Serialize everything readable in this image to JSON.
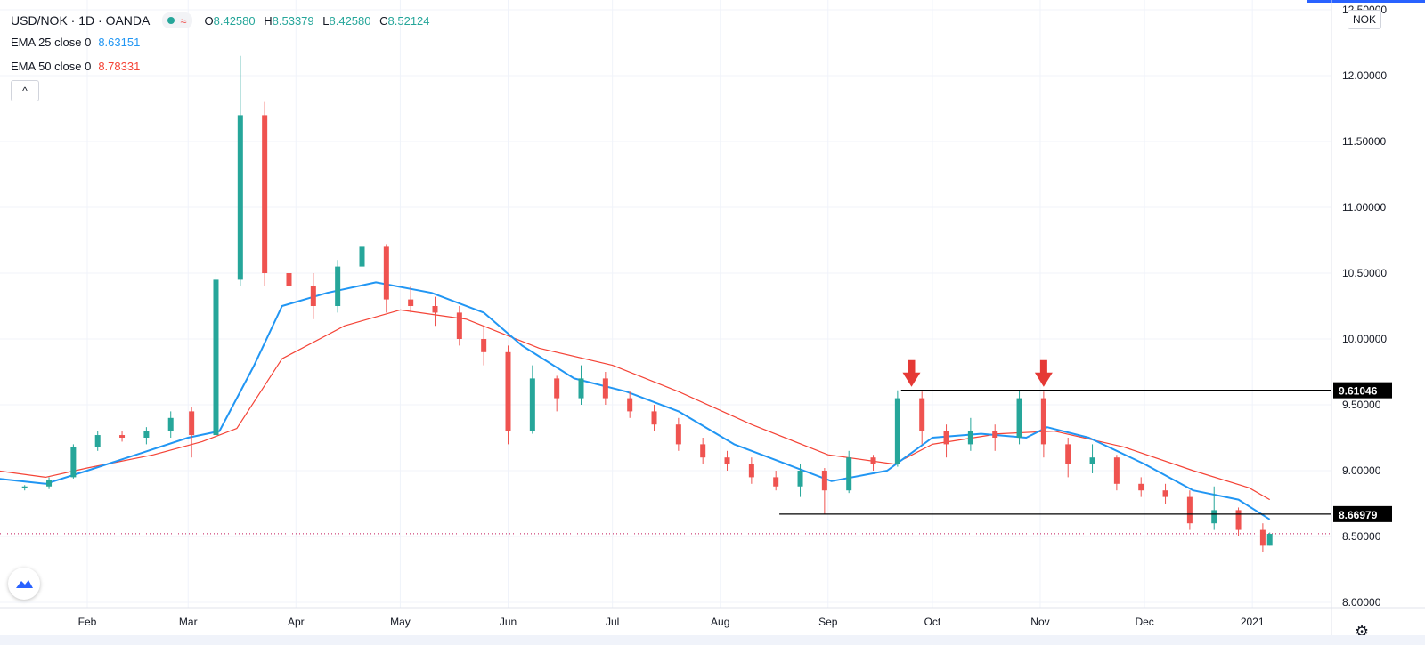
{
  "header": {
    "symbol": "USD/NOK · 1D · OANDA",
    "wave_glyph": "≈",
    "ohlc": {
      "o_key": "O",
      "o": "8.42580",
      "h_key": "H",
      "h": "8.53379",
      "l_key": "L",
      "l": "8.42580",
      "c_key": "C",
      "c": "8.52124"
    }
  },
  "indicators": [
    {
      "label": "EMA 25 close 0",
      "value": "8.63151",
      "color": "#2196f3"
    },
    {
      "label": "EMA 50 close 0",
      "value": "8.78331",
      "color": "#f44336"
    }
  ],
  "collapse_glyph": "^",
  "currency_tag": "NOK",
  "settings_glyph": "⚙",
  "colors": {
    "up": "#26a69a",
    "down": "#ef5350",
    "ema25": "#2196f3",
    "ema50": "#f44336",
    "grid": "#f0f3fa",
    "arrow": "#e53935",
    "level_line": "#000000"
  },
  "chart_data": {
    "type": "candlestick",
    "x_tick_labels": [
      "Feb",
      "Mar",
      "Apr",
      "May",
      "Jun",
      "Jul",
      "Aug",
      "Sep",
      "Oct",
      "Nov",
      "Dec",
      "2021"
    ],
    "y_ticks": [
      8.0,
      8.5,
      9.0,
      9.5,
      10.0,
      10.5,
      11.0,
      11.5,
      12.0,
      12.5
    ],
    "y_tick_labels": [
      "8.00000",
      "8.50000",
      "9.00000",
      "9.50000",
      "10.00000",
      "10.50000",
      "11.00000",
      "11.50000",
      "12.00000",
      "12.50000"
    ],
    "ylim": [
      8.0,
      12.5
    ],
    "horizontal_levels": [
      {
        "label": "9.61046",
        "value": 9.61046,
        "from": "2020-09-22"
      },
      {
        "label": "8.66979",
        "value": 8.66979,
        "from": "2020-08-18"
      }
    ],
    "last_price": 8.52124,
    "arrows": [
      {
        "date": "2020-09-25",
        "value": 9.61
      },
      {
        "date": "2020-11-02",
        "value": 9.61
      }
    ],
    "candles": [
      [
        "2020-01-14",
        8.87,
        8.89,
        8.85,
        8.88
      ],
      [
        "2020-01-21",
        8.88,
        8.95,
        8.86,
        8.93
      ],
      [
        "2020-01-28",
        8.95,
        9.2,
        8.94,
        9.18
      ],
      [
        "2020-02-04",
        9.18,
        9.3,
        9.15,
        9.27
      ],
      [
        "2020-02-11",
        9.27,
        9.3,
        9.22,
        9.25
      ],
      [
        "2020-02-18",
        9.25,
        9.33,
        9.2,
        9.3
      ],
      [
        "2020-02-25",
        9.3,
        9.45,
        9.25,
        9.4
      ],
      [
        "2020-03-02",
        9.45,
        9.48,
        9.1,
        9.27
      ],
      [
        "2020-03-09",
        9.27,
        10.5,
        9.25,
        10.45
      ],
      [
        "2020-03-16",
        10.45,
        12.15,
        10.4,
        11.7
      ],
      [
        "2020-03-23",
        11.7,
        11.8,
        10.4,
        10.5
      ],
      [
        "2020-03-30",
        10.5,
        10.75,
        10.25,
        10.4
      ],
      [
        "2020-04-06",
        10.4,
        10.5,
        10.15,
        10.25
      ],
      [
        "2020-04-13",
        10.25,
        10.6,
        10.2,
        10.55
      ],
      [
        "2020-04-20",
        10.55,
        10.8,
        10.45,
        10.7
      ],
      [
        "2020-04-27",
        10.7,
        10.72,
        10.2,
        10.3
      ],
      [
        "2020-05-04",
        10.3,
        10.4,
        10.2,
        10.25
      ],
      [
        "2020-05-11",
        10.25,
        10.32,
        10.1,
        10.2
      ],
      [
        "2020-05-18",
        10.2,
        10.25,
        9.95,
        10.0
      ],
      [
        "2020-05-25",
        10.0,
        10.1,
        9.8,
        9.9
      ],
      [
        "2020-06-01",
        9.9,
        9.95,
        9.2,
        9.3
      ],
      [
        "2020-06-08",
        9.3,
        9.8,
        9.28,
        9.7
      ],
      [
        "2020-06-15",
        9.7,
        9.72,
        9.45,
        9.55
      ],
      [
        "2020-06-22",
        9.55,
        9.8,
        9.5,
        9.7
      ],
      [
        "2020-06-29",
        9.7,
        9.75,
        9.5,
        9.55
      ],
      [
        "2020-07-06",
        9.55,
        9.6,
        9.4,
        9.45
      ],
      [
        "2020-07-13",
        9.45,
        9.5,
        9.3,
        9.35
      ],
      [
        "2020-07-20",
        9.35,
        9.4,
        9.15,
        9.2
      ],
      [
        "2020-07-27",
        9.2,
        9.25,
        9.05,
        9.1
      ],
      [
        "2020-08-03",
        9.1,
        9.15,
        9.0,
        9.05
      ],
      [
        "2020-08-10",
        9.05,
        9.1,
        8.9,
        8.95
      ],
      [
        "2020-08-17",
        8.95,
        9.0,
        8.85,
        8.88
      ],
      [
        "2020-08-24",
        8.88,
        9.05,
        8.8,
        9.0
      ],
      [
        "2020-08-31",
        9.0,
        9.02,
        8.67,
        8.85
      ],
      [
        "2020-09-07",
        8.85,
        9.15,
        8.83,
        9.1
      ],
      [
        "2020-09-14",
        9.1,
        9.12,
        9.0,
        9.05
      ],
      [
        "2020-09-21",
        9.05,
        9.61,
        9.03,
        9.55
      ],
      [
        "2020-09-28",
        9.55,
        9.6,
        9.2,
        9.3
      ],
      [
        "2020-10-05",
        9.3,
        9.35,
        9.1,
        9.2
      ],
      [
        "2020-10-12",
        9.2,
        9.4,
        9.15,
        9.3
      ],
      [
        "2020-10-19",
        9.3,
        9.35,
        9.15,
        9.25
      ],
      [
        "2020-10-26",
        9.25,
        9.61,
        9.2,
        9.55
      ],
      [
        "2020-11-02",
        9.55,
        9.6,
        9.1,
        9.2
      ],
      [
        "2020-11-09",
        9.2,
        9.25,
        8.95,
        9.05
      ],
      [
        "2020-11-16",
        9.05,
        9.2,
        8.98,
        9.1
      ],
      [
        "2020-11-23",
        9.1,
        9.12,
        8.85,
        8.9
      ],
      [
        "2020-11-30",
        8.9,
        8.95,
        8.8,
        8.85
      ],
      [
        "2020-12-07",
        8.85,
        8.9,
        8.75,
        8.8
      ],
      [
        "2020-12-14",
        8.8,
        8.85,
        8.55,
        8.6
      ],
      [
        "2020-12-21",
        8.6,
        8.88,
        8.55,
        8.7
      ],
      [
        "2020-12-28",
        8.7,
        8.72,
        8.5,
        8.55
      ],
      [
        "2021-01-04",
        8.55,
        8.6,
        8.38,
        8.43
      ],
      [
        "2021-01-06",
        8.43,
        8.53,
        8.43,
        8.52
      ]
    ],
    "ema25": [
      [
        "2020-01-06",
        8.94
      ],
      [
        "2020-01-20",
        8.9
      ],
      [
        "2020-02-01",
        9.0
      ],
      [
        "2020-02-15",
        9.12
      ],
      [
        "2020-03-01",
        9.25
      ],
      [
        "2020-03-10",
        9.3
      ],
      [
        "2020-03-20",
        9.8
      ],
      [
        "2020-03-28",
        10.25
      ],
      [
        "2020-04-10",
        10.35
      ],
      [
        "2020-04-24",
        10.43
      ],
      [
        "2020-05-10",
        10.35
      ],
      [
        "2020-05-25",
        10.2
      ],
      [
        "2020-06-05",
        9.95
      ],
      [
        "2020-06-20",
        9.7
      ],
      [
        "2020-07-05",
        9.6
      ],
      [
        "2020-07-20",
        9.45
      ],
      [
        "2020-08-05",
        9.2
      ],
      [
        "2020-08-20",
        9.05
      ],
      [
        "2020-09-02",
        8.92
      ],
      [
        "2020-09-18",
        9.0
      ],
      [
        "2020-10-01",
        9.25
      ],
      [
        "2020-10-15",
        9.28
      ],
      [
        "2020-10-28",
        9.25
      ],
      [
        "2020-11-03",
        9.33
      ],
      [
        "2020-11-15",
        9.25
      ],
      [
        "2020-12-01",
        9.05
      ],
      [
        "2020-12-15",
        8.85
      ],
      [
        "2020-12-28",
        8.78
      ],
      [
        "2021-01-06",
        8.63
      ]
    ],
    "ema50": [
      [
        "2020-01-06",
        9.0
      ],
      [
        "2020-01-20",
        8.95
      ],
      [
        "2020-02-01",
        9.02
      ],
      [
        "2020-02-20",
        9.12
      ],
      [
        "2020-03-05",
        9.22
      ],
      [
        "2020-03-15",
        9.32
      ],
      [
        "2020-03-28",
        9.85
      ],
      [
        "2020-04-15",
        10.1
      ],
      [
        "2020-05-01",
        10.22
      ],
      [
        "2020-05-20",
        10.15
      ],
      [
        "2020-06-10",
        9.93
      ],
      [
        "2020-07-01",
        9.8
      ],
      [
        "2020-07-20",
        9.6
      ],
      [
        "2020-08-10",
        9.35
      ],
      [
        "2020-09-01",
        9.12
      ],
      [
        "2020-09-20",
        9.05
      ],
      [
        "2020-10-01",
        9.2
      ],
      [
        "2020-10-20",
        9.28
      ],
      [
        "2020-11-05",
        9.3
      ],
      [
        "2020-11-25",
        9.18
      ],
      [
        "2020-12-15",
        9.0
      ],
      [
        "2020-12-31",
        8.87
      ],
      [
        "2021-01-06",
        8.78
      ]
    ]
  }
}
